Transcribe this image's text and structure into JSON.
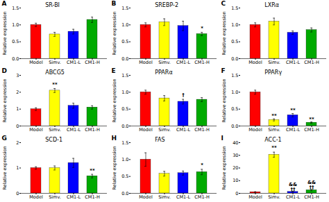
{
  "chart_data": [
    {
      "type": "bar",
      "label": "A",
      "title": "SR-BI",
      "ylabel": "Relative expression",
      "categories": [
        "Model",
        "Simv.",
        "CM1-L",
        "CM1-H"
      ],
      "values": [
        1.0,
        0.72,
        0.8,
        1.15
      ],
      "errors": [
        0.05,
        0.06,
        0.07,
        0.08
      ],
      "colors": [
        "#ff0000",
        "#ffff00",
        "#0000ff",
        "#00aa00"
      ],
      "ylim": [
        0,
        1.5
      ],
      "yticks": [
        {
          "value": 0,
          "label": "0.0"
        },
        0.5,
        {
          "value": 1.0,
          "label": "1.0"
        },
        1.5
      ],
      "annotations": []
    },
    {
      "type": "bar",
      "label": "B",
      "title": "SREBP-2",
      "ylabel": "Relative expression",
      "categories": [
        "Model",
        "Simv.",
        "CM1-L",
        "CM1-H"
      ],
      "values": [
        1.0,
        1.08,
        0.97,
        0.73
      ],
      "errors": [
        0.06,
        0.1,
        0.14,
        0.05
      ],
      "colors": [
        "#ff0000",
        "#ffff00",
        "#0000ff",
        "#00aa00"
      ],
      "ylim": [
        0,
        1.5
      ],
      "yticks": [
        {
          "value": 0,
          "label": "0.0"
        },
        0.5,
        {
          "value": 1.0,
          "label": "1.0"
        },
        1.5
      ],
      "annotations": [
        {
          "x": "CM1-H",
          "y": 0.85,
          "text": "*"
        }
      ]
    },
    {
      "type": "bar",
      "label": "C",
      "title": "LXRα",
      "ylabel": "Relative expression",
      "categories": [
        "Model",
        "Simv.",
        "CM1-L",
        "CM1-H"
      ],
      "values": [
        1.0,
        1.1,
        0.77,
        0.85
      ],
      "errors": [
        0.06,
        0.1,
        0.05,
        0.06
      ],
      "colors": [
        "#ff0000",
        "#ffff00",
        "#0000ff",
        "#00aa00"
      ],
      "ylim": [
        0,
        1.5
      ],
      "yticks": [
        {
          "value": 0,
          "label": "0.0"
        },
        0.5,
        {
          "value": 1.0,
          "label": "1.0"
        },
        1.5
      ],
      "annotations": []
    },
    {
      "type": "bar",
      "label": "D",
      "title": "ABCG5",
      "ylabel": "Relative expression",
      "categories": [
        "Model",
        "Simv.",
        "CM1-L",
        "CM1-H"
      ],
      "values": [
        1.0,
        2.1,
        1.2,
        1.1
      ],
      "errors": [
        0.08,
        0.12,
        0.15,
        0.1
      ],
      "colors": [
        "#ff0000",
        "#ffff00",
        "#0000ff",
        "#00aa00"
      ],
      "ylim": [
        0,
        3
      ],
      "yticks": [
        0,
        1,
        2,
        3
      ],
      "annotations": [
        {
          "x": "Simv.",
          "y": 2.37,
          "text": "**"
        }
      ]
    },
    {
      "type": "bar",
      "label": "E",
      "title": "PPARα",
      "ylabel": "Relative expression",
      "categories": [
        "Model",
        "Simv.",
        "CM1-L",
        "CM1-H"
      ],
      "values": [
        1.0,
        0.82,
        0.72,
        0.78
      ],
      "errors": [
        0.06,
        0.08,
        0.07,
        0.06
      ],
      "colors": [
        "#ff0000",
        "#ffff00",
        "#0000ff",
        "#00aa00"
      ],
      "ylim": [
        0,
        1.5
      ],
      "yticks": [
        {
          "value": 0,
          "label": "0.0"
        },
        0.5,
        {
          "value": 1.0,
          "label": "1.0"
        },
        1.5
      ],
      "annotations": [
        {
          "x": "CM1-L",
          "y": 0.87,
          "text": "†"
        }
      ]
    },
    {
      "type": "bar",
      "label": "F",
      "title": "PPARγ",
      "ylabel": "Relative expression",
      "categories": [
        "Model",
        "Simv.",
        "CM1-L",
        "CM1-H"
      ],
      "values": [
        1.0,
        0.18,
        0.32,
        0.1
      ],
      "errors": [
        0.06,
        0.03,
        0.05,
        0.02
      ],
      "colors": [
        "#ff0000",
        "#ffff00",
        "#0000ff",
        "#00aa00"
      ],
      "ylim": [
        0,
        1.5
      ],
      "yticks": [
        {
          "value": 0,
          "label": "0.0"
        },
        0.5,
        {
          "value": 1.0,
          "label": "1.0"
        },
        1.5
      ],
      "annotations": [
        {
          "x": "Simv.",
          "y": 0.25,
          "text": "**"
        },
        {
          "x": "CM1-L",
          "y": 0.43,
          "text": "**"
        },
        {
          "x": "CM1-H",
          "y": 0.15,
          "text": "**"
        }
      ]
    },
    {
      "type": "bar",
      "label": "G",
      "title": "SCD-1",
      "ylabel": "Relative expression",
      "categories": [
        "Model",
        "Simv.",
        "CM1-L",
        "CM1-H"
      ],
      "values": [
        1.0,
        1.0,
        1.2,
        0.68
      ],
      "errors": [
        0.05,
        0.08,
        0.18,
        0.07
      ],
      "colors": [
        "#ff0000",
        "#ffff00",
        "#0000ff",
        "#00aa00"
      ],
      "ylim": [
        0,
        2
      ],
      "yticks": [
        0,
        1,
        2
      ],
      "annotations": [
        {
          "x": "CM1-H",
          "y": 0.83,
          "text": "**"
        }
      ]
    },
    {
      "type": "bar",
      "label": "H",
      "title": "FAS",
      "ylabel": "Relative expression",
      "categories": [
        "Model",
        "Simv.",
        "CM1-L",
        "CM1-H"
      ],
      "values": [
        1.0,
        0.58,
        0.6,
        0.63
      ],
      "errors": [
        0.2,
        0.07,
        0.06,
        0.08
      ],
      "colors": [
        "#ff0000",
        "#ffff00",
        "#0000ff",
        "#00aa00"
      ],
      "ylim": [
        0,
        1.5
      ],
      "yticks": [
        {
          "value": 0,
          "label": "0.0"
        },
        0.5,
        {
          "value": 1.0,
          "label": "1.0"
        },
        1.5
      ],
      "annotations": [
        {
          "x": "CM1-H",
          "y": 0.8,
          "text": "*"
        }
      ]
    },
    {
      "type": "bar",
      "label": "I",
      "title": "ACC-1",
      "ylabel": "Relative expression",
      "categories": [
        "Model",
        "Simv.",
        "CM1-L",
        "CM1-H"
      ],
      "values": [
        1.0,
        30.5,
        1.2,
        2.5
      ],
      "errors": [
        0.3,
        2.0,
        0.3,
        0.5
      ],
      "colors": [
        "#ff0000",
        "#ffff00",
        "#0000ff",
        "#00aa00"
      ],
      "ylim": [
        0,
        40
      ],
      "yticks": [
        0,
        10,
        20,
        30,
        40
      ],
      "annotations": [
        {
          "x": "Simv.",
          "y": 35,
          "text": "**"
        },
        {
          "x": "CM1-L",
          "y": 2.0,
          "text": "&&\n††"
        },
        {
          "x": "CM1-H",
          "y": 3.7,
          "text": "&&\n††"
        }
      ]
    }
  ]
}
